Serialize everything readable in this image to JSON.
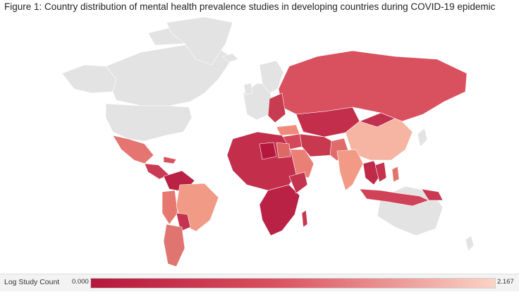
{
  "title": "Figure 1: Country distribution of mental health prevalence studies in developing countries during COVID-19 epidemic",
  "legend": {
    "title": "Log Study Count",
    "min_label": "0.000",
    "max_label": "2.167"
  },
  "colors": {
    "scale_low": "#b5173d",
    "scale_mid": "#d9505e",
    "scale_high": "#fbd3c6",
    "no_data": "#e3e3e3",
    "ocean": "#ffffff"
  },
  "map_data": {
    "type": "choropleth",
    "metric": "Log Study Count",
    "range": [
      0,
      2.167
    ],
    "shaded_regions_approx": [
      {
        "region": "Russia",
        "value": 0.6
      },
      {
        "region": "China",
        "value": 2.0
      },
      {
        "region": "India",
        "value": 1.7
      },
      {
        "region": "Pakistan",
        "value": 1.5
      },
      {
        "region": "Iran",
        "value": 1.3
      },
      {
        "region": "Turkey",
        "value": 1.5
      },
      {
        "region": "Saudi Arabia",
        "value": 1.2
      },
      {
        "region": "Egypt",
        "value": 1.3
      },
      {
        "region": "Libya",
        "value": 0.1
      },
      {
        "region": "Brazil",
        "value": 1.6
      },
      {
        "region": "Argentina",
        "value": 1.4
      },
      {
        "region": "Mexico",
        "value": 1.0
      },
      {
        "region": "Colombia",
        "value": 0.4
      },
      {
        "region": "Peru",
        "value": 1.2
      },
      {
        "region": "Africa (other)",
        "value": 0.2
      },
      {
        "region": "Indonesia",
        "value": 0.7
      },
      {
        "region": "Vietnam",
        "value": 0.4
      },
      {
        "region": "Kazakhstan",
        "value": 0.3
      }
    ]
  }
}
